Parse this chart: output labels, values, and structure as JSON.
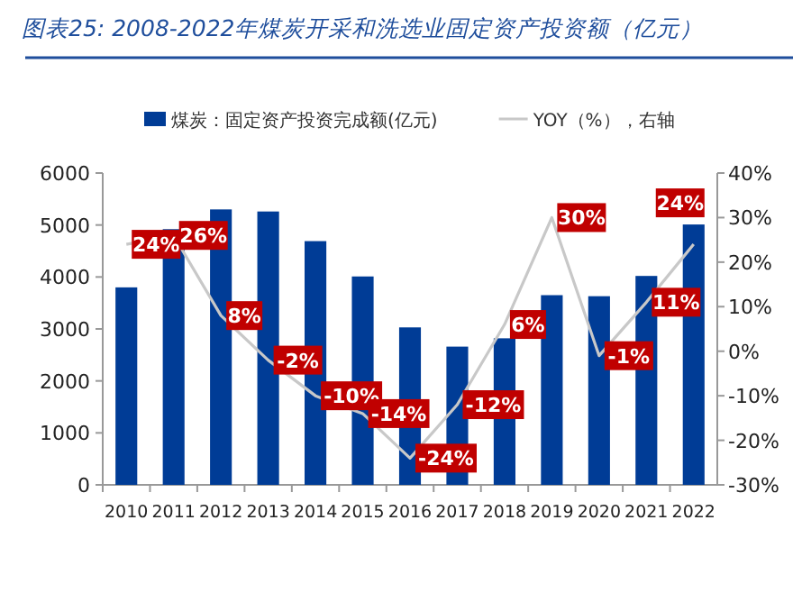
{
  "chart_data": {
    "type": "bar",
    "title": "图表25: 2008-2022年煤炭开采和洗选业固定资产投资额（亿元）",
    "categories": [
      "2010",
      "2011",
      "2012",
      "2013",
      "2014",
      "2015",
      "2016",
      "2017",
      "2018",
      "2019",
      "2020",
      "2021",
      "2022"
    ],
    "series": [
      {
        "name": "煤炭：固定资产投资完成额(亿元)",
        "color": "#003c96",
        "values": [
          3800,
          4920,
          5300,
          5260,
          4690,
          4010,
          3030,
          2660,
          2820,
          3650,
          3630,
          4020,
          5010
        ]
      },
      {
        "name": "YOY（%），右轴",
        "type": "line",
        "axis": "y2",
        "color": "#c8c8c8",
        "values": [
          24,
          26,
          8,
          -2,
          -10,
          -14,
          -24,
          -12,
          6,
          30,
          -1,
          11,
          24
        ],
        "value_labels": [
          "24%",
          "26%",
          "8%",
          "-2%",
          "-10%",
          "-14%",
          "-24%",
          "-12%",
          "6%",
          "30%",
          "-1%",
          "11%",
          "24%"
        ]
      }
    ],
    "ylim": [
      0,
      6000
    ],
    "yticks": [
      0,
      1000,
      2000,
      3000,
      4000,
      5000,
      6000
    ],
    "y2lim": [
      -30,
      40
    ],
    "y2ticks": [
      {
        "value": -30,
        "label": "-30%"
      },
      {
        "value": -20,
        "label": "-20%"
      },
      {
        "value": -10,
        "label": "-10%"
      },
      {
        "value": 0,
        "label": "0%"
      },
      {
        "value": 10,
        "label": "10%"
      },
      {
        "value": 20,
        "label": "20%"
      },
      {
        "value": 30,
        "label": "30%"
      },
      {
        "value": 40,
        "label": "40%"
      }
    ],
    "legend": "top",
    "grid": false
  }
}
